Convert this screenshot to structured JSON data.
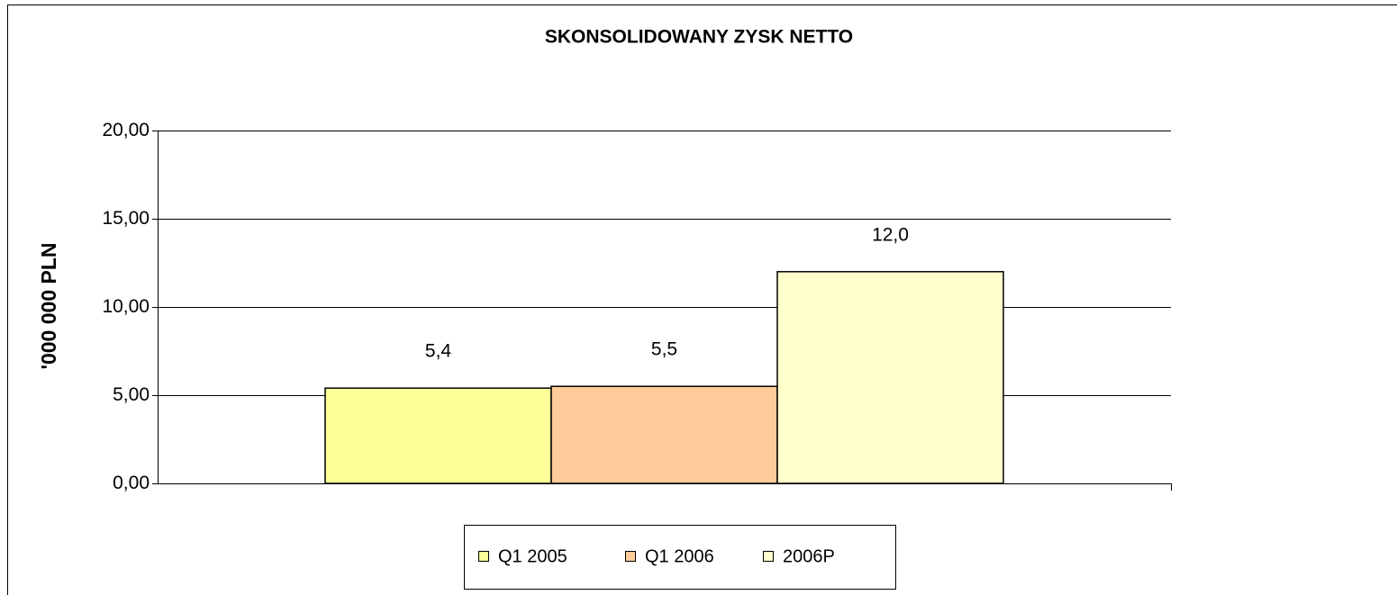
{
  "chart_data": {
    "type": "bar",
    "title": "SKONSOLIDOWANY ZYSK NETTO",
    "ylabel": "'000 000 PLN",
    "categories": [
      null
    ],
    "series": [
      {
        "name": "Q1 2005",
        "color": "#ffff99",
        "values": [
          5.4
        ],
        "value_labels": [
          "5,4"
        ]
      },
      {
        "name": "Q1 2006",
        "color": "#ffcc99",
        "values": [
          5.5
        ],
        "value_labels": [
          "5,5"
        ]
      },
      {
        "name": "2006P",
        "color": "#ffffcc",
        "values": [
          12.0
        ],
        "value_labels": [
          "12,0"
        ]
      }
    ],
    "ylim": [
      0,
      20
    ],
    "yticks": [
      {
        "value": 0,
        "label": "0,00"
      },
      {
        "value": 5,
        "label": "5,00"
      },
      {
        "value": 10,
        "label": "10,00"
      },
      {
        "value": 15,
        "label": "15,00"
      },
      {
        "value": 20,
        "label": "20,00"
      }
    ],
    "grid": true,
    "legend": "bottom"
  }
}
